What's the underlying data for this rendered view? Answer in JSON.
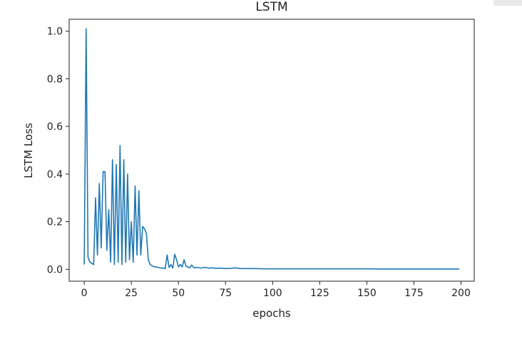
{
  "chart_data": {
    "type": "line",
    "title": "LSTM",
    "xlabel": "epochs",
    "ylabel": "LSTM Loss",
    "xlim": [
      -8,
      207
    ],
    "ylim": [
      -0.05,
      1.05
    ],
    "xticks": [
      0,
      25,
      50,
      75,
      100,
      125,
      150,
      175,
      200
    ],
    "xtick_labels": [
      "0",
      "25",
      "50",
      "75",
      "100",
      "125",
      "150",
      "175",
      "200"
    ],
    "yticks": [
      0.0,
      0.2,
      0.4,
      0.6,
      0.8,
      1.0
    ],
    "ytick_labels": [
      "0.0",
      "0.2",
      "0.4",
      "0.6",
      "0.8",
      "1.0"
    ],
    "grid": false,
    "series": [
      {
        "color": "#1f77b4",
        "x": [
          0,
          1,
          2,
          3,
          4,
          5,
          6,
          7,
          8,
          9,
          10,
          11,
          12,
          13,
          14,
          15,
          16,
          17,
          18,
          19,
          20,
          21,
          22,
          23,
          24,
          25,
          26,
          27,
          28,
          29,
          30,
          31,
          32,
          33,
          34,
          35,
          36,
          37,
          38,
          39,
          40,
          41,
          42,
          43,
          44,
          45,
          46,
          47,
          48,
          49,
          50,
          51,
          52,
          53,
          54,
          55,
          56,
          57,
          58,
          59,
          60,
          62,
          64,
          66,
          68,
          70,
          72,
          75,
          78,
          80,
          83,
          86,
          90,
          95,
          100,
          110,
          120,
          130,
          140,
          150,
          160,
          170,
          180,
          190,
          199
        ],
        "y": [
          0.02,
          1.01,
          0.05,
          0.03,
          0.025,
          0.02,
          0.3,
          0.06,
          0.36,
          0.09,
          0.41,
          0.41,
          0.08,
          0.25,
          0.03,
          0.46,
          0.02,
          0.44,
          0.03,
          0.52,
          0.02,
          0.46,
          0.03,
          0.4,
          0.04,
          0.2,
          0.03,
          0.35,
          0.06,
          0.33,
          0.06,
          0.18,
          0.17,
          0.15,
          0.04,
          0.02,
          0.015,
          0.01,
          0.01,
          0.008,
          0.007,
          0.005,
          0.005,
          0.003,
          0.06,
          0.008,
          0.02,
          0.005,
          0.063,
          0.04,
          0.01,
          0.02,
          0.01,
          0.04,
          0.012,
          0.01,
          0.006,
          0.018,
          0.008,
          0.006,
          0.008,
          0.005,
          0.008,
          0.005,
          0.006,
          0.004,
          0.005,
          0.003,
          0.004,
          0.006,
          0.003,
          0.003,
          0.003,
          0.002,
          0.002,
          0.002,
          0.002,
          0.002,
          0.002,
          0.002,
          0.001,
          0.001,
          0.001,
          0.001,
          0.001
        ]
      }
    ]
  }
}
